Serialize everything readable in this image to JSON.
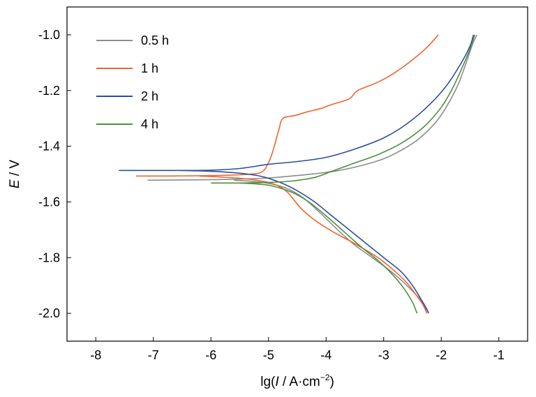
{
  "chart_data": {
    "type": "line",
    "title": "",
    "xlabel": {
      "prefix": "lg(",
      "italic": "I",
      "middle": " / A·cm",
      "sup": "−2",
      "suffix": ")"
    },
    "ylabel": {
      "italic": "E",
      "rest": " / V"
    },
    "xlim": [
      -8.5,
      -0.5
    ],
    "ylim": [
      -2.1,
      -0.9
    ],
    "xticks": [
      -8,
      -7,
      -6,
      -5,
      -4,
      -3,
      -2,
      -1
    ],
    "xtick_labels": [
      "-8",
      "-7",
      "-6",
      "-5",
      "-4",
      "-3",
      "-2",
      "-1"
    ],
    "yticks": [
      -1.0,
      -1.2,
      -1.4,
      -1.6,
      -1.8,
      -2.0
    ],
    "ytick_labels": [
      "-1.0",
      "-1.2",
      "-1.4",
      "-1.6",
      "-1.8",
      "-2.0"
    ],
    "grid": false,
    "legend_position": "top-left",
    "series": [
      {
        "name": "0.5 h",
        "color": "#8c8c8c",
        "anodic": [
          [
            -7.1,
            -1.522
          ],
          [
            -6.5,
            -1.521
          ],
          [
            -6.0,
            -1.52
          ],
          [
            -5.5,
            -1.518
          ],
          [
            -5.0,
            -1.514
          ],
          [
            -4.6,
            -1.507
          ],
          [
            -4.2,
            -1.499
          ],
          [
            -3.8,
            -1.488
          ],
          [
            -3.4,
            -1.47
          ],
          [
            -3.0,
            -1.445
          ],
          [
            -2.7,
            -1.415
          ],
          [
            -2.4,
            -1.375
          ],
          [
            -2.1,
            -1.315
          ],
          [
            -1.9,
            -1.255
          ],
          [
            -1.7,
            -1.175
          ],
          [
            -1.55,
            -1.09
          ],
          [
            -1.45,
            -1.03
          ],
          [
            -1.38,
            -1.0
          ]
        ],
        "cathodic": [
          [
            -5.6,
            -1.522
          ],
          [
            -5.1,
            -1.53
          ],
          [
            -4.7,
            -1.55
          ],
          [
            -4.4,
            -1.585
          ],
          [
            -4.1,
            -1.64
          ],
          [
            -3.8,
            -1.7
          ],
          [
            -3.5,
            -1.755
          ],
          [
            -3.2,
            -1.8
          ],
          [
            -2.9,
            -1.845
          ],
          [
            -2.7,
            -1.88
          ],
          [
            -2.5,
            -1.92
          ],
          [
            -2.35,
            -1.955
          ],
          [
            -2.28,
            -1.98
          ],
          [
            -2.25,
            -2.0
          ]
        ]
      },
      {
        "name": "1 h",
        "color": "#f0642d",
        "anodic": [
          [
            -7.3,
            -1.507
          ],
          [
            -6.8,
            -1.507
          ],
          [
            -6.2,
            -1.506
          ],
          [
            -5.7,
            -1.504
          ],
          [
            -5.3,
            -1.5
          ],
          [
            -5.1,
            -1.49
          ],
          [
            -4.98,
            -1.45
          ],
          [
            -4.9,
            -1.4
          ],
          [
            -4.82,
            -1.34
          ],
          [
            -4.75,
            -1.3
          ],
          [
            -4.55,
            -1.29
          ],
          [
            -4.3,
            -1.275
          ],
          [
            -4.1,
            -1.265
          ],
          [
            -3.9,
            -1.25
          ],
          [
            -3.6,
            -1.23
          ],
          [
            -3.45,
            -1.2
          ],
          [
            -3.1,
            -1.17
          ],
          [
            -2.8,
            -1.135
          ],
          [
            -2.5,
            -1.09
          ],
          [
            -2.25,
            -1.045
          ],
          [
            -2.05,
            -1.0
          ]
        ],
        "cathodic": [
          [
            -6.2,
            -1.507
          ],
          [
            -5.5,
            -1.515
          ],
          [
            -5.0,
            -1.53
          ],
          [
            -4.7,
            -1.56
          ],
          [
            -4.45,
            -1.62
          ],
          [
            -4.2,
            -1.665
          ],
          [
            -3.9,
            -1.705
          ],
          [
            -3.5,
            -1.75
          ],
          [
            -3.1,
            -1.8
          ],
          [
            -2.8,
            -1.85
          ],
          [
            -2.6,
            -1.89
          ],
          [
            -2.45,
            -1.93
          ],
          [
            -2.33,
            -1.965
          ],
          [
            -2.27,
            -1.99
          ],
          [
            -2.25,
            -2.0
          ]
        ]
      },
      {
        "name": "2 h",
        "color": "#2a4ea0",
        "anodic": [
          [
            -7.6,
            -1.487
          ],
          [
            -7.0,
            -1.487
          ],
          [
            -6.5,
            -1.487
          ],
          [
            -6.0,
            -1.486
          ],
          [
            -5.5,
            -1.48
          ],
          [
            -5.0,
            -1.465
          ],
          [
            -4.5,
            -1.455
          ],
          [
            -4.0,
            -1.44
          ],
          [
            -3.5,
            -1.41
          ],
          [
            -3.0,
            -1.37
          ],
          [
            -2.6,
            -1.32
          ],
          [
            -2.2,
            -1.25
          ],
          [
            -1.9,
            -1.18
          ],
          [
            -1.65,
            -1.1
          ],
          [
            -1.5,
            -1.04
          ],
          [
            -1.44,
            -1.0
          ]
        ],
        "cathodic": [
          [
            -6.5,
            -1.487
          ],
          [
            -5.8,
            -1.492
          ],
          [
            -5.2,
            -1.505
          ],
          [
            -4.8,
            -1.53
          ],
          [
            -4.5,
            -1.56
          ],
          [
            -4.2,
            -1.6
          ],
          [
            -3.9,
            -1.65
          ],
          [
            -3.6,
            -1.7
          ],
          [
            -3.3,
            -1.75
          ],
          [
            -3.0,
            -1.8
          ],
          [
            -2.7,
            -1.85
          ],
          [
            -2.5,
            -1.9
          ],
          [
            -2.35,
            -1.95
          ],
          [
            -2.25,
            -1.985
          ],
          [
            -2.22,
            -2.0
          ]
        ]
      },
      {
        "name": "4 h",
        "color": "#4e8f3a",
        "anodic": [
          [
            -6.0,
            -1.532
          ],
          [
            -5.5,
            -1.532
          ],
          [
            -5.0,
            -1.53
          ],
          [
            -4.6,
            -1.525
          ],
          [
            -4.2,
            -1.512
          ],
          [
            -3.9,
            -1.49
          ],
          [
            -3.5,
            -1.46
          ],
          [
            -3.1,
            -1.43
          ],
          [
            -2.7,
            -1.39
          ],
          [
            -2.3,
            -1.33
          ],
          [
            -2.0,
            -1.26
          ],
          [
            -1.8,
            -1.19
          ],
          [
            -1.62,
            -1.11
          ],
          [
            -1.5,
            -1.05
          ],
          [
            -1.42,
            -1.0
          ]
        ],
        "cathodic": [
          [
            -5.5,
            -1.532
          ],
          [
            -5.0,
            -1.54
          ],
          [
            -4.6,
            -1.565
          ],
          [
            -4.3,
            -1.6
          ],
          [
            -4.0,
            -1.65
          ],
          [
            -3.7,
            -1.705
          ],
          [
            -3.4,
            -1.76
          ],
          [
            -3.1,
            -1.81
          ],
          [
            -2.85,
            -1.86
          ],
          [
            -2.65,
            -1.91
          ],
          [
            -2.5,
            -1.96
          ],
          [
            -2.44,
            -1.99
          ],
          [
            -2.42,
            -2.0
          ]
        ]
      }
    ]
  }
}
